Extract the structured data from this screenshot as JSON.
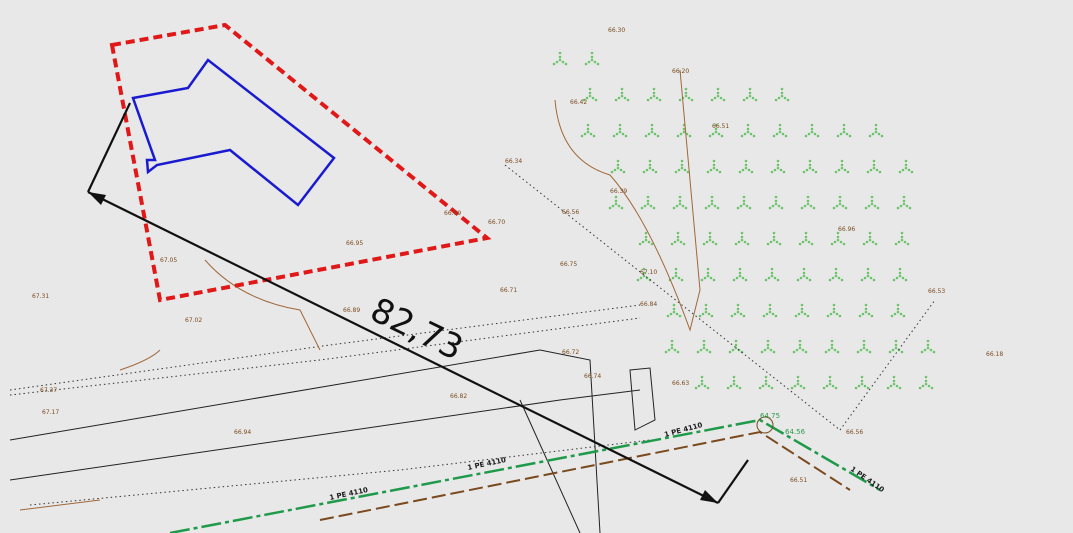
{
  "dimension": "82,73",
  "elevations": [
    "66.30",
    "66.20",
    "66.42",
    "66.51",
    "66.34",
    "66.56",
    "66.39",
    "66.69",
    "66.70",
    "66.95",
    "67.05",
    "66.75",
    "66.71",
    "66.96",
    "67.31",
    "67.02",
    "67.10",
    "66.89",
    "66.84",
    "66.72",
    "66.74",
    "66.63",
    "66.56",
    "66.51",
    "66.18",
    "67.37",
    "67.17",
    "66.94",
    "66.82",
    "66.53"
  ],
  "pipe_labels": [
    "1 PE 4110",
    "1 PE 4110",
    "1 PE 4110",
    "1 PE 4110"
  ],
  "green_labels": [
    "64.75",
    "64.56"
  ]
}
